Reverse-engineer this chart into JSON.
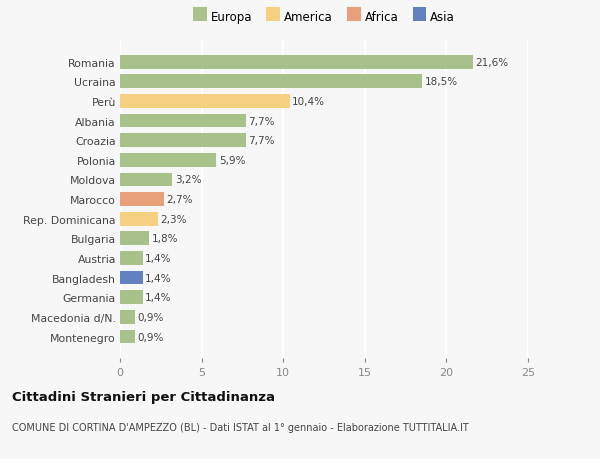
{
  "categories": [
    "Romania",
    "Ucraina",
    "Perù",
    "Albania",
    "Croazia",
    "Polonia",
    "Moldova",
    "Marocco",
    "Rep. Dominicana",
    "Bulgaria",
    "Austria",
    "Bangladesh",
    "Germania",
    "Macedonia d/N.",
    "Montenegro"
  ],
  "values": [
    21.6,
    18.5,
    10.4,
    7.7,
    7.7,
    5.9,
    3.2,
    2.7,
    2.3,
    1.8,
    1.4,
    1.4,
    1.4,
    0.9,
    0.9
  ],
  "labels": [
    "21,6%",
    "18,5%",
    "10,4%",
    "7,7%",
    "7,7%",
    "5,9%",
    "3,2%",
    "2,7%",
    "2,3%",
    "1,8%",
    "1,4%",
    "1,4%",
    "1,4%",
    "0,9%",
    "0,9%"
  ],
  "colors": [
    "#a8c08a",
    "#a8c08a",
    "#f5d080",
    "#a8c08a",
    "#a8c08a",
    "#a8c08a",
    "#a8c08a",
    "#e8a07a",
    "#f5d080",
    "#a8c08a",
    "#a8c08a",
    "#6080c0",
    "#a8c08a",
    "#a8c08a",
    "#a8c08a"
  ],
  "legend": [
    {
      "label": "Europa",
      "color": "#a8c08a"
    },
    {
      "label": "America",
      "color": "#f5d080"
    },
    {
      "label": "Africa",
      "color": "#e8a07a"
    },
    {
      "label": "Asia",
      "color": "#6080c0"
    }
  ],
  "xlim": [
    0,
    25
  ],
  "xticks": [
    0,
    5,
    10,
    15,
    20,
    25
  ],
  "title": "Cittadini Stranieri per Cittadinanza",
  "subtitle": "COMUNE DI CORTINA D'AMPEZZO (BL) - Dati ISTAT al 1° gennaio - Elaborazione TUTTITALIA.IT",
  "bg_color": "#f7f7f7",
  "grid_color": "#ffffff",
  "bar_height": 0.7
}
